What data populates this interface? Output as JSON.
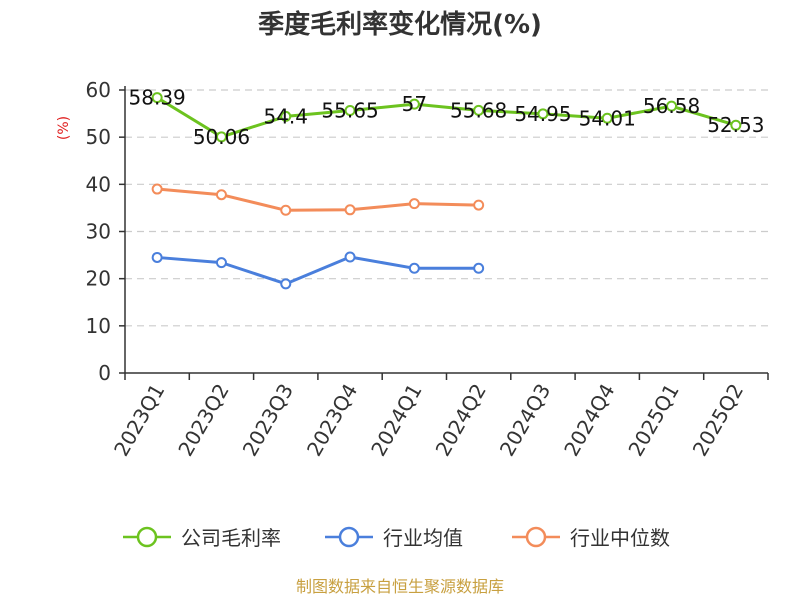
{
  "chart_data": {
    "type": "line",
    "title": "季度毛利率变化情况(%)",
    "ylabel": "(%)",
    "xlabel": "",
    "ylim": [
      0,
      60
    ],
    "yticks": [
      0,
      10,
      20,
      30,
      40,
      50,
      60
    ],
    "categories": [
      "2023Q1",
      "2023Q2",
      "2023Q3",
      "2023Q4",
      "2024Q1",
      "2024Q2",
      "2024Q3",
      "2024Q4",
      "2025Q1",
      "2025Q2"
    ],
    "grid": true,
    "legend_position": "bottom",
    "series": [
      {
        "name": "公司毛利率",
        "color": "#6cc31f",
        "values": [
          58.39,
          50.06,
          54.4,
          55.65,
          57,
          55.68,
          54.95,
          54.01,
          56.58,
          52.53
        ],
        "labels": [
          "58.39",
          "50.06",
          "54.4",
          "55.65",
          "57",
          "55.68",
          "54.95",
          "54.01",
          "56.58",
          "52.53"
        ]
      },
      {
        "name": "行业均值",
        "color": "#4a7fdc",
        "values": [
          24.5,
          23.4,
          18.9,
          24.6,
          22.2,
          22.2,
          null,
          null,
          null,
          null
        ]
      },
      {
        "name": "行业中位数",
        "color": "#f38c5a",
        "values": [
          39.0,
          37.8,
          34.5,
          34.6,
          35.9,
          35.6,
          null,
          null,
          null,
          null
        ]
      }
    ],
    "source": "制图数据来自恒生聚源数据库"
  },
  "colors": {
    "title": "#333333",
    "ylabel": "#e02020",
    "axis": "#333333",
    "grid": "#cccccc",
    "source": "#c8a040"
  }
}
